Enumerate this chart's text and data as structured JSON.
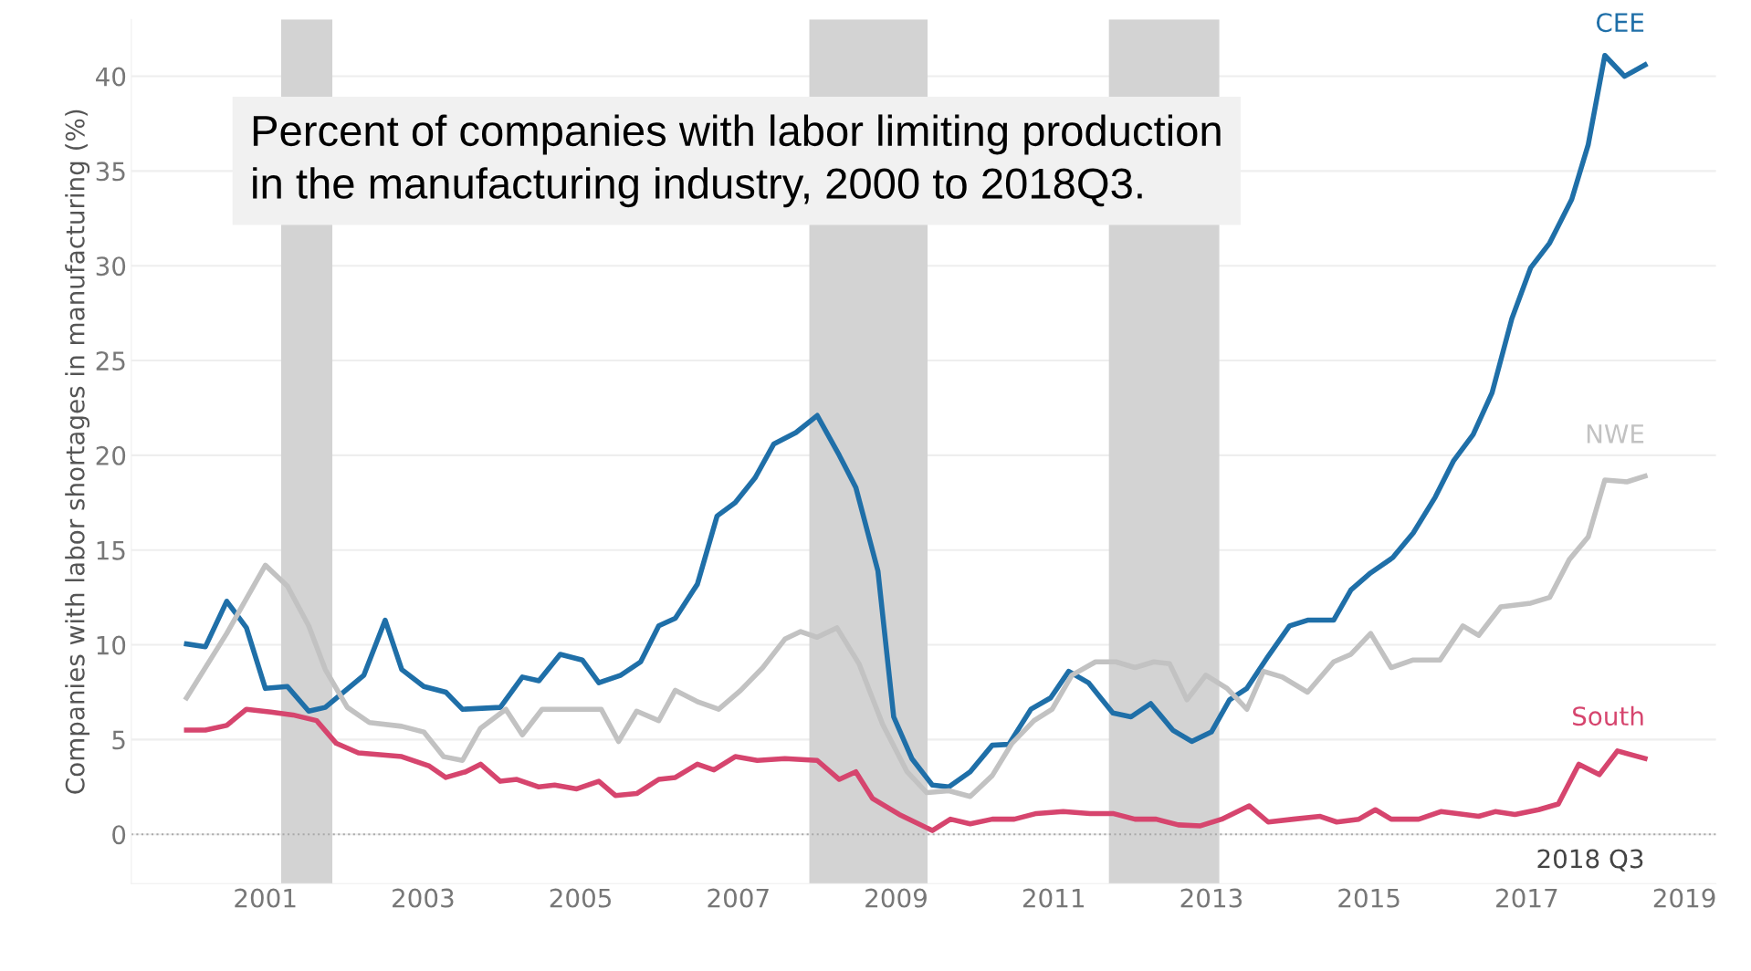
{
  "chart_data": {
    "type": "line",
    "title": "Percent of companies with labor limiting production\nin the manufacturing industry, 2000 to 2018Q3.",
    "ylabel": "Companies with labor shortages in manufacturing (%)",
    "series": [
      {
        "name": "CEE",
        "color": "#1f6fa8",
        "x": [
          2000.0,
          2000.24,
          2000.51,
          2000.76,
          2001.0,
          2001.28,
          2001.55,
          2001.76,
          2002.25,
          2002.52,
          2002.73,
          2003.01,
          2003.29,
          2003.5,
          2003.98,
          2004.26,
          2004.47,
          2004.74,
          2005.02,
          2005.23,
          2005.51,
          2005.76,
          2005.99,
          2006.2,
          2006.48,
          2006.73,
          2006.96,
          2007.21,
          2007.45,
          2007.73,
          2008.0,
          2008.28,
          2008.49,
          2008.77,
          2008.97,
          2009.2,
          2009.46,
          2009.67,
          2009.94,
          2010.22,
          2010.43,
          2010.71,
          2010.96,
          2011.19,
          2011.44,
          2011.75,
          2011.98,
          2012.23,
          2012.51,
          2012.75,
          2013.0,
          2013.23,
          2013.45,
          2013.72,
          2013.99,
          2014.22,
          2014.55,
          2014.77,
          2015.02,
          2015.3,
          2015.56,
          2015.84,
          2016.07,
          2016.32,
          2016.56,
          2016.81,
          2017.05,
          2017.29,
          2017.57,
          2017.78,
          2017.99,
          2018.24,
          2018.5
        ],
        "values": [
          10.05,
          9.9,
          12.3,
          10.9,
          7.7,
          7.8,
          6.5,
          6.7,
          8.4,
          11.3,
          8.7,
          7.8,
          7.5,
          6.6,
          6.7,
          8.3,
          8.1,
          9.5,
          9.2,
          8.0,
          8.4,
          9.1,
          11.0,
          11.4,
          13.2,
          16.8,
          17.5,
          18.8,
          20.6,
          21.2,
          22.1,
          20.0,
          18.3,
          13.9,
          6.2,
          4.0,
          2.6,
          2.5,
          3.3,
          4.7,
          4.75,
          6.6,
          7.2,
          8.6,
          8.0,
          6.4,
          6.2,
          6.9,
          5.5,
          4.9,
          5.4,
          7.1,
          7.7,
          9.4,
          11.0,
          11.3,
          11.3,
          12.9,
          13.8,
          14.6,
          15.9,
          17.8,
          19.7,
          21.1,
          23.3,
          27.2,
          29.9,
          31.2,
          33.5,
          36.4,
          41.1,
          40.0,
          40.6
        ]
      },
      {
        "name": "NWE",
        "color": "#c2c2c2",
        "x": [
          2000.0,
          2000.51,
          2001.0,
          2001.28,
          2001.55,
          2001.76,
          2002.04,
          2002.32,
          2002.73,
          2003.01,
          2003.26,
          2003.5,
          2003.73,
          2004.05,
          2004.26,
          2004.51,
          2005.02,
          2005.26,
          2005.48,
          2005.71,
          2005.99,
          2006.2,
          2006.48,
          2006.75,
          2007.03,
          2007.31,
          2007.59,
          2007.79,
          2008.0,
          2008.25,
          2008.53,
          2008.83,
          2009.14,
          2009.39,
          2009.67,
          2009.94,
          2010.22,
          2010.47,
          2010.75,
          2010.98,
          2011.23,
          2011.53,
          2011.79,
          2012.03,
          2012.27,
          2012.47,
          2012.69,
          2012.93,
          2013.2,
          2013.45,
          2013.66,
          2013.9,
          2014.22,
          2014.55,
          2014.77,
          2015.02,
          2015.28,
          2015.56,
          2015.9,
          2016.19,
          2016.39,
          2016.67,
          2017.05,
          2017.29,
          2017.54,
          2017.78,
          2017.99,
          2018.27,
          2018.5
        ],
        "values": [
          7.2,
          10.6,
          14.2,
          13.1,
          11.0,
          8.7,
          6.7,
          5.9,
          5.7,
          5.4,
          4.1,
          3.9,
          5.6,
          6.6,
          5.25,
          6.6,
          6.6,
          6.6,
          4.9,
          6.5,
          6.0,
          7.6,
          7.0,
          6.6,
          7.6,
          8.8,
          10.3,
          10.7,
          10.4,
          10.9,
          9.0,
          5.8,
          3.3,
          2.2,
          2.3,
          2.0,
          3.1,
          4.8,
          6.0,
          6.6,
          8.4,
          9.1,
          9.1,
          8.8,
          9.1,
          9.0,
          7.1,
          8.4,
          7.7,
          6.6,
          8.6,
          8.3,
          7.5,
          9.1,
          9.5,
          10.6,
          8.8,
          9.2,
          9.2,
          11.0,
          10.5,
          12.0,
          12.2,
          12.5,
          14.5,
          15.7,
          18.7,
          18.6,
          18.9
        ]
      },
      {
        "name": "South",
        "color": "#d6456e",
        "x": [
          2000.0,
          2000.24,
          2000.51,
          2000.76,
          2001.07,
          2001.35,
          2001.65,
          2001.9,
          2002.18,
          2002.73,
          2003.08,
          2003.29,
          2003.54,
          2003.73,
          2003.98,
          2004.19,
          2004.47,
          2004.67,
          2004.95,
          2005.23,
          2005.44,
          2005.71,
          2005.99,
          2006.2,
          2006.48,
          2006.69,
          2006.96,
          2007.24,
          2007.59,
          2008.0,
          2008.28,
          2008.49,
          2008.7,
          2009.04,
          2009.46,
          2009.69,
          2009.94,
          2010.22,
          2010.5,
          2010.78,
          2011.12,
          2011.46,
          2011.75,
          2012.03,
          2012.3,
          2012.58,
          2012.86,
          2013.13,
          2013.48,
          2013.72,
          2014.04,
          2014.38,
          2014.59,
          2014.87,
          2015.08,
          2015.28,
          2015.63,
          2015.91,
          2016.12,
          2016.39,
          2016.6,
          2016.85,
          2017.15,
          2017.4,
          2017.66,
          2017.92,
          2018.15,
          2018.5
        ],
        "values": [
          5.5,
          5.5,
          5.75,
          6.6,
          6.45,
          6.3,
          6.0,
          4.8,
          4.3,
          4.1,
          3.6,
          3.0,
          3.3,
          3.7,
          2.8,
          2.9,
          2.5,
          2.6,
          2.4,
          2.8,
          2.05,
          2.15,
          2.9,
          3.0,
          3.7,
          3.4,
          4.1,
          3.9,
          4.0,
          3.9,
          2.9,
          3.3,
          1.9,
          1.05,
          0.2,
          0.8,
          0.55,
          0.8,
          0.8,
          1.1,
          1.2,
          1.1,
          1.1,
          0.8,
          0.8,
          0.5,
          0.45,
          0.8,
          1.5,
          0.65,
          0.8,
          0.95,
          0.65,
          0.8,
          1.3,
          0.8,
          0.8,
          1.2,
          1.1,
          0.95,
          1.2,
          1.05,
          1.3,
          1.6,
          3.7,
          3.15,
          4.4,
          4.0
        ]
      }
    ],
    "xlim": [
      1999.3,
      2019.4
    ],
    "xticks": [
      2001,
      2003,
      2005,
      2007,
      2009,
      2011,
      2013,
      2015,
      2017,
      2019
    ],
    "ylim": [
      -2.6,
      43
    ],
    "yticks": [
      0,
      5,
      10,
      15,
      20,
      25,
      30,
      35,
      40
    ],
    "grid": "y",
    "ref_lines": [
      {
        "axis": "y",
        "value": 0,
        "color": "#aaaaaa",
        "line_style": "dotted"
      }
    ],
    "bands": [
      {
        "axis": "x",
        "from": 2001.2,
        "to": 2001.85,
        "color": "#d3d3d3"
      },
      {
        "axis": "x",
        "from": 2007.9,
        "to": 2009.4,
        "color": "#d3d3d3"
      },
      {
        "axis": "x",
        "from": 2011.7,
        "to": 2013.1,
        "color": "#d3d3d3"
      }
    ],
    "annotations": [
      "2018 Q3"
    ]
  }
}
